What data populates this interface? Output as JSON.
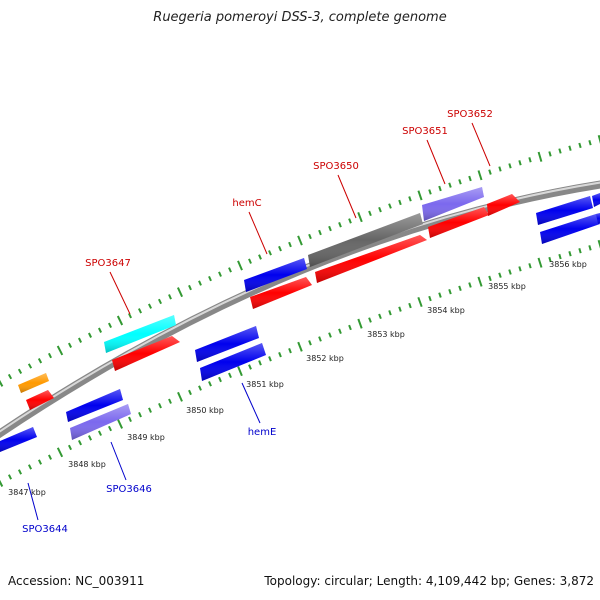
{
  "title": "Ruegeria pomeroyi DSS-3, complete genome",
  "footer": {
    "accession": "Accession: NC_003911",
    "summary": "Topology: circular; Length: 4,109,442 bp; Genes: 3,872"
  },
  "colors": {
    "backbone": "#888888",
    "forward_gene": "#ff0000",
    "reverse_gene": "#0000ee",
    "cyan_gene": "#00ffff",
    "purple_gene": "#7b68ee",
    "gray_gene": "#666666",
    "orange_gene": "#ff9900",
    "tick_mark": "#339933",
    "forward_label": "#cc0000",
    "reverse_label": "#0000cc"
  },
  "scale_labels": [
    "3847 kbp",
    "3848 kbp",
    "3849 kbp",
    "3850 kbp",
    "3851 kbp",
    "3852 kbp",
    "3853 kbp",
    "3854 kbp",
    "3855 kbp",
    "3856 kbp"
  ],
  "forward_track_labels": [
    "SPO3647",
    "hemC",
    "SPO3650",
    "SPO3651",
    "SPO3652"
  ],
  "reverse_track_labels": [
    "SPO3644",
    "SPO3646",
    "hemE"
  ],
  "features": [
    {
      "name": "orange-feature",
      "strand": "forward",
      "color": "orange_gene"
    },
    {
      "name": "red-feature-1",
      "strand": "forward",
      "color": "forward_gene"
    },
    {
      "name": "cyan-feature-spo3647",
      "strand": "forward",
      "color": "cyan_gene"
    },
    {
      "name": "red-feature-2",
      "strand": "forward",
      "color": "forward_gene"
    },
    {
      "name": "blue-feature-hemc",
      "strand": "forward",
      "color": "reverse_gene"
    },
    {
      "name": "red-feature-3",
      "strand": "forward",
      "color": "forward_gene"
    },
    {
      "name": "gray-feature-spo3650",
      "strand": "forward",
      "color": "gray_gene"
    },
    {
      "name": "red-feature-4",
      "strand": "forward",
      "color": "forward_gene"
    },
    {
      "name": "purple-feature-spo3651",
      "strand": "forward",
      "color": "purple_gene"
    },
    {
      "name": "red-feature-5",
      "strand": "forward",
      "color": "forward_gene"
    },
    {
      "name": "red-feature-6",
      "strand": "forward",
      "color": "forward_gene"
    },
    {
      "name": "blue-feature-1",
      "strand": "reverse",
      "color": "reverse_gene"
    },
    {
      "name": "blue-feature-2",
      "strand": "reverse",
      "color": "reverse_gene"
    },
    {
      "name": "purple-feature-spo3646",
      "strand": "reverse",
      "color": "purple_gene"
    },
    {
      "name": "blue-feature-3",
      "strand": "reverse",
      "color": "reverse_gene"
    },
    {
      "name": "blue-feature-4",
      "strand": "reverse",
      "color": "reverse_gene"
    },
    {
      "name": "blue-feature-5",
      "strand": "reverse",
      "color": "reverse_gene"
    },
    {
      "name": "blue-feature-6",
      "strand": "reverse",
      "color": "reverse_gene"
    },
    {
      "name": "blue-feature-7",
      "strand": "reverse",
      "color": "reverse_gene"
    },
    {
      "name": "blue-feature-8",
      "strand": "reverse",
      "color": "reverse_gene"
    }
  ]
}
